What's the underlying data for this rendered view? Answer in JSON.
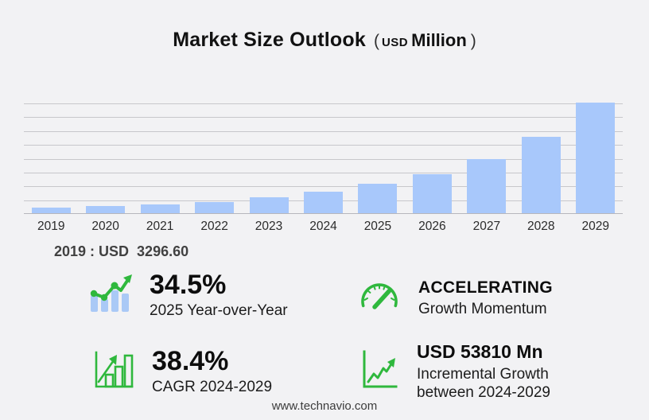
{
  "title": {
    "main": "Market Size Outlook",
    "paren_open": "(",
    "unit_small": "USD",
    "unit_large": "Million",
    "paren_close": ")"
  },
  "base_note": {
    "text": "2019 : USD  3296.60"
  },
  "chart_data": {
    "type": "bar",
    "title": "Market Size Outlook (USD Million)",
    "unit": "USD Million",
    "categories": [
      "2019",
      "2020",
      "2021",
      "2022",
      "2023",
      "2024",
      "2025",
      "2026",
      "2027",
      "2028",
      "2029"
    ],
    "values": [
      3296.6,
      4200,
      5150,
      6750,
      9500,
      13196.2,
      17748.9,
      23650,
      32950,
      46450,
      67006.2
    ],
    "xlabel": "",
    "ylabel": "",
    "ylim": [
      0,
      67006.2
    ],
    "y_tick_labels": false,
    "gridlines": "horizontal",
    "gridline_count": 9,
    "legend": "none",
    "bar_color": "#a8c8fb",
    "annotations": [
      "2019 : USD 3296.60"
    ]
  },
  "stats": [
    {
      "id": "yoy",
      "icon": "bar-chart-trend-icon",
      "value": "34.5%",
      "label": "2025 Year-over-Year"
    },
    {
      "id": "momentum",
      "icon": "speedometer-icon",
      "value": "ACCELERATING",
      "label": "Growth Momentum"
    },
    {
      "id": "cagr",
      "icon": "growth-bars-icon",
      "value": "38.4%",
      "label": "CAGR 2024-2029"
    },
    {
      "id": "incremental",
      "icon": "line-growth-icon",
      "value": "USD 53810 Mn",
      "label": "Incremental Growth",
      "label2": "between 2024-2029"
    }
  ],
  "footer": {
    "url": "www.technavio.com"
  },
  "colors": {
    "background": "#f2f2f4",
    "bar_blue": "#a8c8fb",
    "icon_bar_blue": "#aac9f6",
    "gridline": "#c7c7cb",
    "accent_green": "#2fb83d",
    "text_dark": "#111111",
    "note_gray": "#414141"
  }
}
